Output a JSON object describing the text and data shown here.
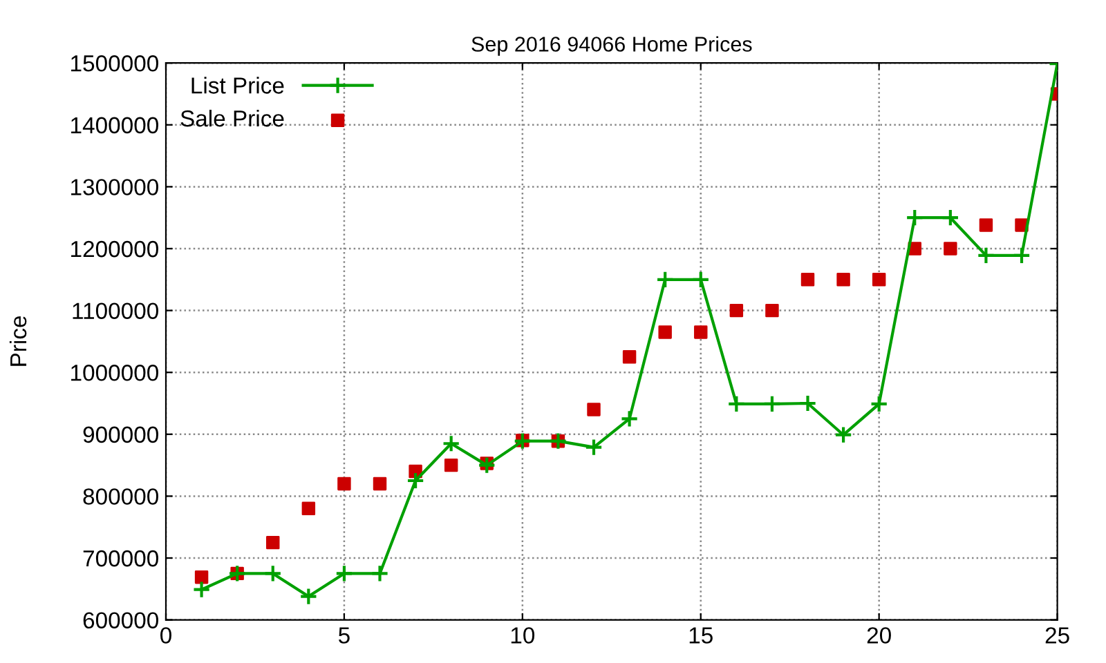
{
  "chart_data": {
    "type": "line",
    "title": "Sep 2016 94066 Home Prices",
    "ylabel": "Price",
    "x": [
      1,
      2,
      3,
      4,
      5,
      6,
      7,
      8,
      9,
      10,
      11,
      12,
      13,
      14,
      15,
      16,
      17,
      18,
      19,
      20,
      21,
      22,
      23,
      24,
      25
    ],
    "series": [
      {
        "name": "List Price",
        "color": "#00a000",
        "marker": "cross",
        "line_style": "solid",
        "values": [
          649000,
          675000,
          675000,
          638000,
          675000,
          675000,
          825000,
          885000,
          850000,
          889000,
          889000,
          879000,
          925000,
          1150000,
          1150000,
          949000,
          949000,
          950000,
          899000,
          949000,
          1250000,
          1250000,
          1189000,
          1189000,
          1499000
        ]
      },
      {
        "name": "Sale Price",
        "type": "scatter",
        "color": "#cc0000",
        "marker": "square",
        "values": [
          669000,
          675000,
          725000,
          780000,
          820000,
          820000,
          840000,
          850000,
          853000,
          890000,
          889000,
          940000,
          1025000,
          1065000,
          1065000,
          1100000,
          1100000,
          1150000,
          1150000,
          1150000,
          1200000,
          1200000,
          1238000,
          1238000,
          1450000
        ]
      }
    ],
    "xlim": [
      0,
      25
    ],
    "xticks": [
      0,
      5,
      10,
      15,
      20,
      25
    ],
    "ylim": [
      600000,
      1500000
    ],
    "yticks": [
      600000,
      700000,
      800000,
      900000,
      1000000,
      1100000,
      1200000,
      1300000,
      1400000,
      1500000
    ],
    "grid": true,
    "legend": "top left"
  }
}
